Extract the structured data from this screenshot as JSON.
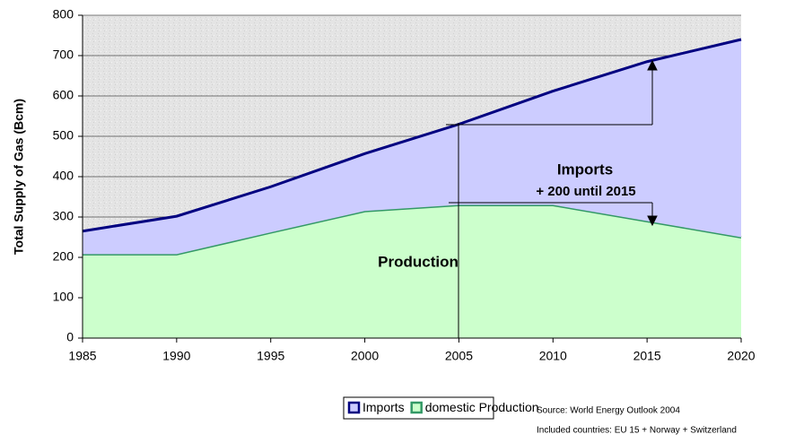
{
  "chart_data": {
    "type": "stacked_area",
    "y_label": "Total Supply of Gas (Bcm)",
    "x": [
      1985,
      1990,
      1995,
      2000,
      2005,
      2010,
      2015,
      2020
    ],
    "series": [
      {
        "name": "Imports",
        "color": "#ccccff",
        "edge_color": "#000080",
        "values": [
          57,
          94,
          113,
          142,
          200,
          282,
          395,
          490
        ]
      },
      {
        "name": "domestic Production",
        "color": "#ccffcc",
        "edge_color": "#339966",
        "values": [
          208,
          208,
          262,
          315,
          330,
          330,
          290,
          250
        ]
      }
    ],
    "xlim": [
      1985,
      2020
    ],
    "xticks": [
      1985,
      1990,
      1995,
      2000,
      2005,
      2010,
      2015,
      2020
    ],
    "ylim": [
      0,
      800
    ],
    "yticks": [
      0,
      100,
      200,
      300,
      400,
      500,
      600,
      700,
      800
    ],
    "grid": true,
    "annotations": [
      "Imports",
      "+ 200 until 2015",
      "Production"
    ],
    "source": "Source: World Energy Outlook 2004",
    "note": "Included countries: EU 15 + Norway + Switzerland"
  }
}
